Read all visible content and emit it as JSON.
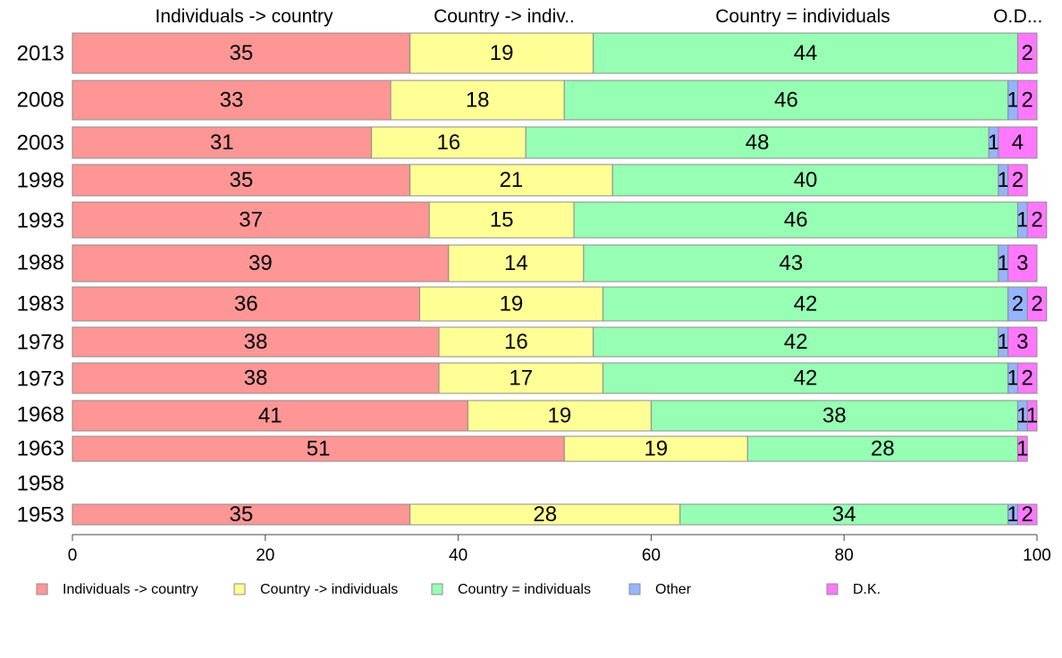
{
  "chart_data": {
    "type": "bar",
    "orientation": "horizontal",
    "stacked": true,
    "title": "",
    "xlabel": "",
    "ylabel": "",
    "xlim": [
      0,
      100
    ],
    "xticks": [
      "0",
      "20",
      "40",
      "60",
      "80",
      "100"
    ],
    "legend_position": "bottom",
    "column_headers": [
      "Individuals -> country",
      "Country -> indiv..",
      "Country = individuals",
      "O...",
      "D..."
    ],
    "categories": [
      "2013",
      "2008",
      "2003",
      "1998",
      "1993",
      "1988",
      "1983",
      "1978",
      "1973",
      "1968",
      "1963",
      "1958",
      "1953"
    ],
    "series": [
      {
        "name": "Individuals -> country",
        "color": "#ff9696",
        "values": [
          35,
          33,
          31,
          35,
          37,
          39,
          36,
          38,
          38,
          41,
          51,
          null,
          35
        ],
        "labels": [
          "35",
          "33",
          "31",
          "35",
          "37",
          "39",
          "36",
          "38",
          "38",
          "41",
          "51",
          "",
          "35"
        ]
      },
      {
        "name": "Country -> individuals",
        "color": "#ffff96",
        "values": [
          19,
          18,
          16,
          21,
          15,
          14,
          19,
          16,
          17,
          19,
          19,
          null,
          28
        ],
        "labels": [
          "19",
          "18",
          "16",
          "21",
          "15",
          "14",
          "19",
          "16",
          "17",
          "19",
          "19",
          "",
          "28"
        ]
      },
      {
        "name": "Country = individuals",
        "color": "#96ffb4",
        "values": [
          44,
          46,
          48,
          40,
          46,
          43,
          42,
          42,
          42,
          38,
          28,
          null,
          34
        ],
        "labels": [
          "44",
          "46",
          "48",
          "40",
          "46",
          "43",
          "42",
          "42",
          "42",
          "38",
          "28",
          "",
          "34"
        ]
      },
      {
        "name": "Other",
        "color": "#96b4ff",
        "values": [
          0,
          1,
          1,
          1,
          1,
          1,
          2,
          1,
          1,
          1,
          0,
          null,
          1
        ],
        "labels": [
          "",
          "1",
          "1",
          "1",
          "1",
          "1",
          "2",
          "1",
          "1",
          "1",
          "",
          "",
          "1"
        ]
      },
      {
        "name": "D.K.",
        "color": "#ff78ff",
        "values": [
          2,
          2,
          4,
          2,
          2,
          3,
          2,
          3,
          2,
          1,
          1,
          null,
          2
        ],
        "labels": [
          "2",
          "2",
          "4",
          "2",
          "2",
          "3",
          "2",
          "3",
          "2",
          "1",
          "1",
          "",
          "2"
        ]
      }
    ]
  }
}
